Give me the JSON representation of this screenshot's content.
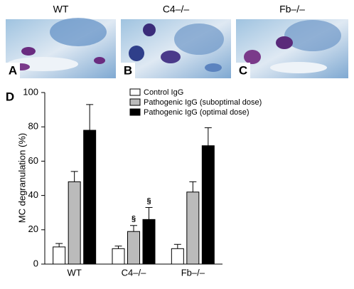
{
  "panels": [
    {
      "title": "WT",
      "letter": "A"
    },
    {
      "title": "C4–/–",
      "letter": "B"
    },
    {
      "title": "Fb–/–",
      "letter": "C"
    }
  ],
  "chart_data": {
    "type": "bar",
    "panel_label": "D",
    "ylabel": "MC degranulation (%)",
    "categories": [
      "WT",
      "C4–/–",
      "Fb–/–"
    ],
    "series": [
      {
        "name": "Control IgG",
        "color": "#ffffff",
        "values": [
          10,
          9,
          9
        ],
        "errors": [
          2,
          1.5,
          2.5
        ],
        "annotations": [
          null,
          null,
          null
        ]
      },
      {
        "name": "Pathogenic IgG (suboptimal dose)",
        "color": "#bbbbbb",
        "values": [
          48,
          19,
          42
        ],
        "errors": [
          6,
          3.5,
          6
        ],
        "annotations": [
          null,
          "§",
          null
        ]
      },
      {
        "name": "Pathogenic IgG (optimal dose)",
        "color": "#000000",
        "values": [
          78,
          26,
          69
        ],
        "errors": [
          15,
          7,
          10.5
        ],
        "annotations": [
          null,
          "§",
          null
        ]
      }
    ],
    "ylim": [
      0,
      100
    ],
    "yticks": [
      0,
      20,
      40,
      60,
      80,
      100
    ],
    "grid": false
  }
}
